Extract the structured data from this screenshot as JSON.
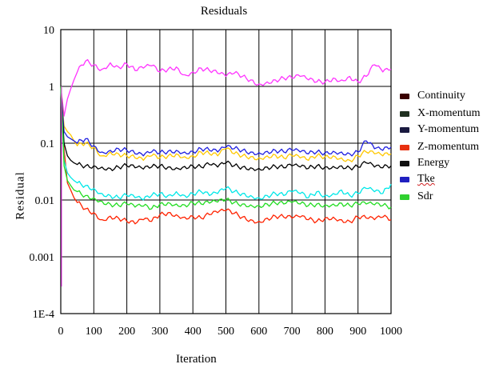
{
  "chart_data": {
    "type": "line",
    "title": "Residuals",
    "xlabel": "Iteration",
    "ylabel": "Residual",
    "yscale": "log",
    "xlim": [
      0,
      1000
    ],
    "ylim": [
      0.0001,
      10
    ],
    "x_ticks": [
      "0",
      "100",
      "200",
      "300",
      "400",
      "500",
      "600",
      "700",
      "800",
      "900",
      "1000"
    ],
    "y_ticks": [
      "10",
      "1",
      "0.1",
      "0.01",
      "0.001",
      "1E-4"
    ],
    "grid": true,
    "legend_position": "right",
    "x": [
      0,
      10,
      20,
      30,
      40,
      50,
      75,
      100,
      125,
      150,
      175,
      200,
      225,
      250,
      275,
      300,
      325,
      350,
      375,
      400,
      425,
      450,
      475,
      500,
      525,
      550,
      575,
      600,
      625,
      650,
      675,
      700,
      725,
      750,
      775,
      800,
      825,
      850,
      875,
      900,
      925,
      950,
      975,
      1000
    ],
    "series": [
      {
        "name": "Continuity",
        "color": "#ff33ff",
        "values": [
          1.0,
          0.3,
          0.6,
          0.9,
          1.3,
          1.8,
          2.8,
          2.4,
          2.0,
          2.6,
          2.2,
          2.5,
          1.9,
          2.1,
          2.3,
          1.8,
          2.0,
          2.2,
          1.6,
          1.8,
          2.1,
          1.9,
          1.7,
          1.5,
          1.7,
          1.5,
          1.3,
          1.1,
          1.2,
          1.3,
          1.4,
          1.4,
          1.5,
          1.3,
          1.2,
          1.2,
          1.4,
          1.3,
          1.5,
          1.2,
          1.5,
          2.4,
          1.8,
          2.0
        ]
      },
      {
        "name": "X-momentum",
        "color": "#ffc800",
        "values": [
          1.0,
          0.2,
          0.16,
          0.14,
          0.11,
          0.09,
          0.1,
          0.085,
          0.06,
          0.07,
          0.065,
          0.06,
          0.055,
          0.05,
          0.06,
          0.055,
          0.06,
          0.065,
          0.058,
          0.06,
          0.07,
          0.065,
          0.06,
          0.08,
          0.065,
          0.06,
          0.058,
          0.055,
          0.06,
          0.062,
          0.055,
          0.06,
          0.055,
          0.05,
          0.06,
          0.058,
          0.06,
          0.055,
          0.05,
          0.06,
          0.07,
          0.065,
          0.06,
          0.065
        ]
      },
      {
        "name": "Y-momentum",
        "color": "#2020e0",
        "values": [
          1.0,
          0.16,
          0.13,
          0.12,
          0.11,
          0.1,
          0.12,
          0.09,
          0.07,
          0.075,
          0.08,
          0.075,
          0.065,
          0.06,
          0.07,
          0.068,
          0.072,
          0.075,
          0.07,
          0.072,
          0.08,
          0.075,
          0.07,
          0.085,
          0.08,
          0.075,
          0.07,
          0.068,
          0.072,
          0.075,
          0.07,
          0.075,
          0.07,
          0.065,
          0.07,
          0.068,
          0.072,
          0.07,
          0.065,
          0.07,
          0.11,
          0.08,
          0.075,
          0.085
        ]
      },
      {
        "name": "Z-momentum",
        "color": "#ff2200",
        "values": [
          1.0,
          0.08,
          0.02,
          0.015,
          0.011,
          0.009,
          0.007,
          0.006,
          0.0045,
          0.0052,
          0.0048,
          0.0042,
          0.0038,
          0.0045,
          0.0042,
          0.0055,
          0.006,
          0.0055,
          0.005,
          0.0052,
          0.0048,
          0.0055,
          0.006,
          0.0065,
          0.0058,
          0.005,
          0.0045,
          0.0042,
          0.0048,
          0.0052,
          0.005,
          0.0048,
          0.005,
          0.0045,
          0.0042,
          0.0048,
          0.005,
          0.0045,
          0.0042,
          0.005,
          0.0048,
          0.0045,
          0.005,
          0.0045
        ]
      },
      {
        "name": "Energy",
        "color": "#000000",
        "values": [
          1.0,
          0.1,
          0.06,
          0.05,
          0.045,
          0.042,
          0.04,
          0.04,
          0.038,
          0.036,
          0.038,
          0.04,
          0.037,
          0.035,
          0.038,
          0.04,
          0.038,
          0.037,
          0.039,
          0.04,
          0.038,
          0.042,
          0.038,
          0.045,
          0.04,
          0.038,
          0.037,
          0.036,
          0.038,
          0.039,
          0.037,
          0.04,
          0.038,
          0.036,
          0.04,
          0.038,
          0.039,
          0.04,
          0.037,
          0.038,
          0.045,
          0.038,
          0.037,
          0.04
        ]
      },
      {
        "name": "Tke",
        "color": "#00e8e8",
        "values": [
          1.0,
          0.05,
          0.03,
          0.025,
          0.022,
          0.02,
          0.018,
          0.016,
          0.013,
          0.012,
          0.011,
          0.012,
          0.011,
          0.01,
          0.012,
          0.013,
          0.012,
          0.014,
          0.012,
          0.013,
          0.014,
          0.012,
          0.013,
          0.016,
          0.014,
          0.013,
          0.012,
          0.011,
          0.012,
          0.013,
          0.012,
          0.014,
          0.013,
          0.011,
          0.014,
          0.012,
          0.013,
          0.015,
          0.012,
          0.013,
          0.016,
          0.014,
          0.013,
          0.019
        ]
      },
      {
        "name": "Sdr",
        "color": "#22dd22",
        "values": [
          1.0,
          0.04,
          0.022,
          0.018,
          0.015,
          0.014,
          0.012,
          0.011,
          0.0095,
          0.0085,
          0.008,
          0.0085,
          0.0075,
          0.0078,
          0.007,
          0.0085,
          0.009,
          0.0085,
          0.0082,
          0.009,
          0.0085,
          0.0088,
          0.0092,
          0.01,
          0.009,
          0.0085,
          0.0082,
          0.008,
          0.0085,
          0.0088,
          0.0085,
          0.009,
          0.0085,
          0.008,
          0.0085,
          0.0082,
          0.0085,
          0.0088,
          0.008,
          0.0085,
          0.0085,
          0.0082,
          0.008,
          0.0075
        ]
      }
    ],
    "legend": [
      {
        "label": "Continuity",
        "color": "#3a0000"
      },
      {
        "label": "X-momentum",
        "color": "#203020"
      },
      {
        "label": "Y-momentum",
        "color": "#1a1a40"
      },
      {
        "label": "Z-momentum",
        "color": "#e83010"
      },
      {
        "label": "Energy",
        "color": "#101010"
      },
      {
        "label": "Tke",
        "color": "#2020c0"
      },
      {
        "label": "Sdr",
        "color": "#30d030"
      }
    ]
  }
}
